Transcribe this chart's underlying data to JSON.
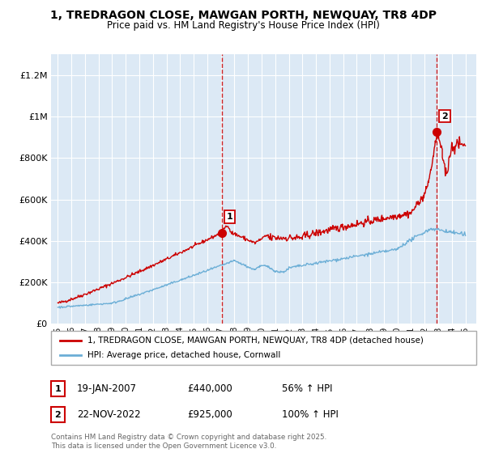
{
  "title_line1": "1, TREDRAGON CLOSE, MAWGAN PORTH, NEWQUAY, TR8 4DP",
  "title_line2": "Price paid vs. HM Land Registry's House Price Index (HPI)",
  "bg_color": "#dce9f5",
  "red_line_color": "#cc0000",
  "blue_line_color": "#6baed6",
  "marker1_date_x": 2007.05,
  "marker1_y": 440000,
  "marker2_date_x": 2022.9,
  "marker2_y": 925000,
  "ylabel_values": [
    "£0",
    "£200K",
    "£400K",
    "£600K",
    "£800K",
    "£1M",
    "£1.2M"
  ],
  "ytick_values": [
    0,
    200000,
    400000,
    600000,
    800000,
    1000000,
    1200000
  ],
  "xlim": [
    1994.5,
    2025.8
  ],
  "ylim": [
    0,
    1300000
  ],
  "legend_label_red": "1, TREDRAGON CLOSE, MAWGAN PORTH, NEWQUAY, TR8 4DP (detached house)",
  "legend_label_blue": "HPI: Average price, detached house, Cornwall",
  "annotation1_label": "1",
  "annotation1_date": "19-JAN-2007",
  "annotation1_price": "£440,000",
  "annotation1_hpi": "56% ↑ HPI",
  "annotation2_label": "2",
  "annotation2_date": "22-NOV-2022",
  "annotation2_price": "£925,000",
  "annotation2_hpi": "100% ↑ HPI",
  "footer": "Contains HM Land Registry data © Crown copyright and database right 2025.\nThis data is licensed under the Open Government Licence v3.0.",
  "xtick_years": [
    1995,
    1996,
    1997,
    1998,
    1999,
    2000,
    2001,
    2002,
    2003,
    2004,
    2005,
    2006,
    2007,
    2008,
    2009,
    2010,
    2011,
    2012,
    2013,
    2014,
    2015,
    2016,
    2017,
    2018,
    2019,
    2020,
    2021,
    2022,
    2023,
    2024,
    2025
  ]
}
